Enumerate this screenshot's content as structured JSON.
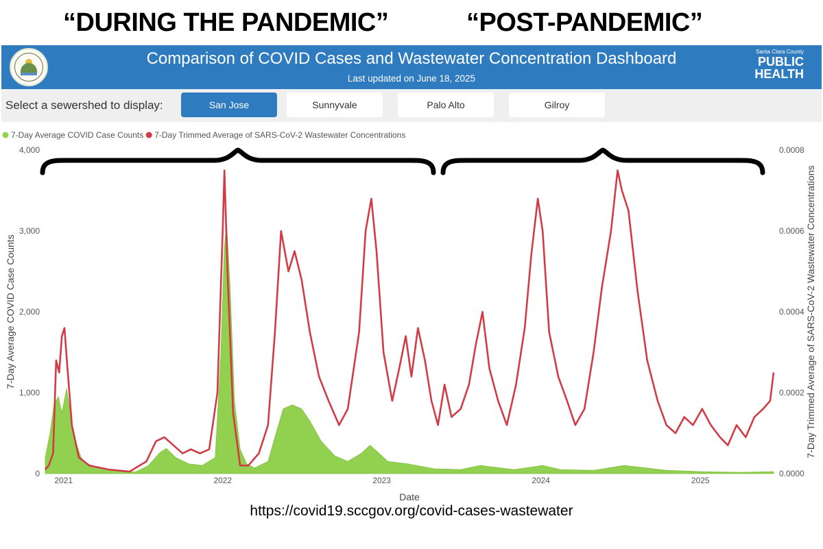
{
  "periods": [
    "“DURING THE PANDEMIC”",
    "“POST-PANDEMIC”"
  ],
  "dashboard": {
    "title": "Comparison of COVID Cases and Wastewater Concentration Dashboard",
    "updated": "Last updated on June 18, 2025",
    "logo": {
      "line1": "Santa Clara County",
      "line2": "PUBLIC",
      "line3": "HEALTH"
    },
    "seal_text": "THE COUNTY OF SANTA CLARA"
  },
  "filter": {
    "label": "Select a sewershed to display:",
    "options": [
      "San Jose",
      "Sunnyvale",
      "Palo Alto",
      "Gilroy"
    ],
    "selected": "San Jose"
  },
  "colors": {
    "banner": "#2e7cbf",
    "cases": "#92d050",
    "wastewater": "#d13b45"
  },
  "source": "https://covid19.sccgov.org/covid-cases-wastewater",
  "chart_data": {
    "type": "area",
    "xlabel": "Date",
    "ylabel": "7-Day Average COVID Case Counts",
    "ylabel_right": "7-Day Trimmed Average of SARS-CoV-2 Wastewater Concentrations",
    "x_range": [
      "2020-11-20",
      "2025-06-18"
    ],
    "x_ticks": [
      {
        "date": "2021-01-01",
        "label": "2021"
      },
      {
        "date": "2022-01-01",
        "label": "2022"
      },
      {
        "date": "2023-01-01",
        "label": "2023"
      },
      {
        "date": "2024-01-01",
        "label": "2024"
      },
      {
        "date": "2025-01-01",
        "label": "2025"
      }
    ],
    "y_range": [
      0,
      4000
    ],
    "y_ticks": [
      "0",
      "1,000",
      "2,000",
      "3,000",
      "4,000"
    ],
    "y2_range": [
      0,
      0.0008
    ],
    "y2_ticks": [
      "0.0000",
      "0.0002",
      "0.0004",
      "0.0006",
      "0.0008"
    ],
    "grid": false,
    "legend_position": "top-left",
    "series": [
      {
        "name": "7-Day Average COVID Case Counts",
        "type": "area",
        "axis": "left",
        "points": [
          [
            "2020-11-20",
            200
          ],
          [
            "2020-12-01",
            500
          ],
          [
            "2020-12-10",
            850
          ],
          [
            "2020-12-20",
            950
          ],
          [
            "2020-12-28",
            750
          ],
          [
            "2021-01-08",
            1050
          ],
          [
            "2021-01-15",
            800
          ],
          [
            "2021-01-25",
            450
          ],
          [
            "2021-02-10",
            200
          ],
          [
            "2021-03-01",
            90
          ],
          [
            "2021-04-01",
            60
          ],
          [
            "2021-05-01",
            40
          ],
          [
            "2021-06-15",
            20
          ],
          [
            "2021-07-15",
            100
          ],
          [
            "2021-08-10",
            260
          ],
          [
            "2021-08-25",
            310
          ],
          [
            "2021-09-15",
            200
          ],
          [
            "2021-10-15",
            120
          ],
          [
            "2021-11-15",
            100
          ],
          [
            "2021-12-15",
            200
          ],
          [
            "2021-12-28",
            1500
          ],
          [
            "2022-01-05",
            2800
          ],
          [
            "2022-01-10",
            3100
          ],
          [
            "2022-01-18",
            2300
          ],
          [
            "2022-01-28",
            900
          ],
          [
            "2022-02-10",
            300
          ],
          [
            "2022-02-25",
            120
          ],
          [
            "2022-03-15",
            70
          ],
          [
            "2022-04-15",
            150
          ],
          [
            "2022-05-01",
            450
          ],
          [
            "2022-05-20",
            800
          ],
          [
            "2022-06-10",
            850
          ],
          [
            "2022-07-01",
            800
          ],
          [
            "2022-07-20",
            650
          ],
          [
            "2022-08-15",
            400
          ],
          [
            "2022-09-15",
            220
          ],
          [
            "2022-10-15",
            150
          ],
          [
            "2022-11-15",
            250
          ],
          [
            "2022-12-05",
            350
          ],
          [
            "2022-12-20",
            280
          ],
          [
            "2023-01-15",
            150
          ],
          [
            "2023-03-01",
            120
          ],
          [
            "2023-05-01",
            60
          ],
          [
            "2023-07-01",
            50
          ],
          [
            "2023-08-15",
            100
          ],
          [
            "2023-09-15",
            80
          ],
          [
            "2023-11-01",
            50
          ],
          [
            "2024-01-05",
            100
          ],
          [
            "2024-02-15",
            50
          ],
          [
            "2024-05-01",
            40
          ],
          [
            "2024-07-10",
            100
          ],
          [
            "2024-08-15",
            80
          ],
          [
            "2024-10-15",
            40
          ],
          [
            "2025-01-01",
            25
          ],
          [
            "2025-04-01",
            15
          ],
          [
            "2025-06-18",
            25
          ]
        ]
      },
      {
        "name": "7-Day Trimmed Average of SARS-CoV-2 Wastewater Concentrations",
        "type": "line",
        "axis": "right",
        "points": [
          [
            "2020-11-20",
            1e-05
          ],
          [
            "2020-11-28",
            2e-05
          ],
          [
            "2020-12-08",
            5e-05
          ],
          [
            "2020-12-15",
            0.00028
          ],
          [
            "2020-12-22",
            0.00025
          ],
          [
            "2020-12-28",
            0.00034
          ],
          [
            "2021-01-03",
            0.00036
          ],
          [
            "2021-01-10",
            0.00026
          ],
          [
            "2021-01-20",
            0.00012
          ],
          [
            "2021-02-05",
            4e-05
          ],
          [
            "2021-03-01",
            2e-05
          ],
          [
            "2021-04-15",
            1e-05
          ],
          [
            "2021-06-01",
            5e-06
          ],
          [
            "2021-07-10",
            3e-05
          ],
          [
            "2021-08-01",
            8e-05
          ],
          [
            "2021-08-20",
            9e-05
          ],
          [
            "2021-09-10",
            7e-05
          ],
          [
            "2021-10-01",
            5e-05
          ],
          [
            "2021-10-20",
            6e-05
          ],
          [
            "2021-11-10",
            5e-05
          ],
          [
            "2021-12-01",
            6e-05
          ],
          [
            "2021-12-20",
            0.0002
          ],
          [
            "2022-01-01",
            0.0006
          ],
          [
            "2022-01-05",
            0.00075
          ],
          [
            "2022-01-12",
            0.0005
          ],
          [
            "2022-01-25",
            0.00015
          ],
          [
            "2022-02-10",
            2e-05
          ],
          [
            "2022-03-01",
            2e-05
          ],
          [
            "2022-03-25",
            5e-05
          ],
          [
            "2022-04-15",
            0.00012
          ],
          [
            "2022-05-01",
            0.00035
          ],
          [
            "2022-05-15",
            0.0006
          ],
          [
            "2022-06-01",
            0.0005
          ],
          [
            "2022-06-15",
            0.00055
          ],
          [
            "2022-07-01",
            0.00048
          ],
          [
            "2022-07-20",
            0.00035
          ],
          [
            "2022-08-10",
            0.00024
          ],
          [
            "2022-09-01",
            0.00018
          ],
          [
            "2022-09-25",
            0.00012
          ],
          [
            "2022-10-15",
            0.00016
          ],
          [
            "2022-11-10",
            0.00035
          ],
          [
            "2022-11-25",
            0.0006
          ],
          [
            "2022-12-08",
            0.00068
          ],
          [
            "2022-12-20",
            0.00055
          ],
          [
            "2023-01-05",
            0.0003
          ],
          [
            "2023-01-25",
            0.00018
          ],
          [
            "2023-02-10",
            0.00026
          ],
          [
            "2023-02-25",
            0.00034
          ],
          [
            "2023-03-10",
            0.00024
          ],
          [
            "2023-03-25",
            0.00036
          ],
          [
            "2023-04-10",
            0.00028
          ],
          [
            "2023-04-25",
            0.00018
          ],
          [
            "2023-05-10",
            0.00012
          ],
          [
            "2023-05-25",
            0.00022
          ],
          [
            "2023-06-10",
            0.00014
          ],
          [
            "2023-07-01",
            0.00016
          ],
          [
            "2023-07-20",
            0.00022
          ],
          [
            "2023-08-05",
            0.00032
          ],
          [
            "2023-08-20",
            0.0004
          ],
          [
            "2023-09-05",
            0.00026
          ],
          [
            "2023-09-25",
            0.00018
          ],
          [
            "2023-10-15",
            0.00012
          ],
          [
            "2023-11-05",
            0.00022
          ],
          [
            "2023-11-25",
            0.00036
          ],
          [
            "2023-12-10",
            0.00054
          ],
          [
            "2023-12-25",
            0.00068
          ],
          [
            "2024-01-05",
            0.0006
          ],
          [
            "2024-01-20",
            0.00035
          ],
          [
            "2024-02-10",
            0.00024
          ],
          [
            "2024-03-01",
            0.00018
          ],
          [
            "2024-03-20",
            0.00012
          ],
          [
            "2024-04-10",
            0.00016
          ],
          [
            "2024-05-01",
            0.0003
          ],
          [
            "2024-05-20",
            0.00046
          ],
          [
            "2024-06-10",
            0.0006
          ],
          [
            "2024-06-25",
            0.00075
          ],
          [
            "2024-07-05",
            0.0007
          ],
          [
            "2024-07-20",
            0.00065
          ],
          [
            "2024-08-10",
            0.00045
          ],
          [
            "2024-09-01",
            0.00028
          ],
          [
            "2024-09-25",
            0.00018
          ],
          [
            "2024-10-15",
            0.00012
          ],
          [
            "2024-11-05",
            0.0001
          ],
          [
            "2024-11-25",
            0.00014
          ],
          [
            "2024-12-15",
            0.00012
          ],
          [
            "2025-01-05",
            0.00016
          ],
          [
            "2025-01-25",
            0.00012
          ],
          [
            "2025-02-15",
            9e-05
          ],
          [
            "2025-03-05",
            7e-05
          ],
          [
            "2025-03-25",
            0.00012
          ],
          [
            "2025-04-15",
            9e-05
          ],
          [
            "2025-05-05",
            0.00014
          ],
          [
            "2025-05-25",
            0.00016
          ],
          [
            "2025-06-10",
            0.00018
          ],
          [
            "2025-06-18",
            0.00025
          ]
        ]
      }
    ]
  }
}
